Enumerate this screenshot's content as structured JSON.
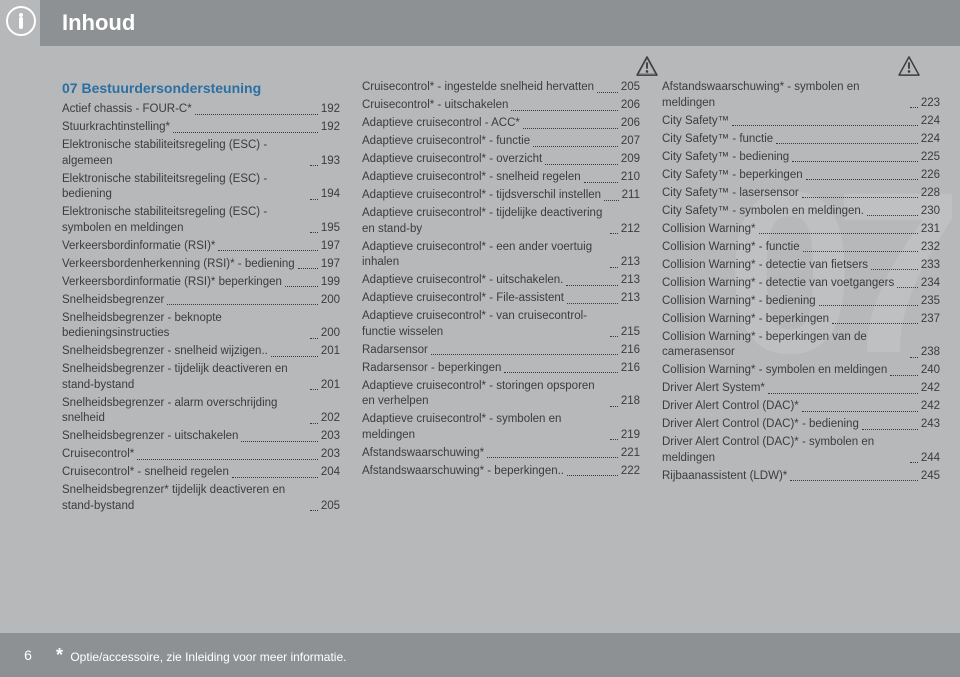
{
  "header": {
    "title": "Inhoud"
  },
  "watermark": "07",
  "section_title": "07 Bestuurdersondersteuning",
  "footer": {
    "page": "6",
    "note_prefix": "*",
    "note": " Optie/accessoire, zie Inleiding voor meer informatie."
  },
  "col1": [
    {
      "label": "Actief chassis - FOUR-C*",
      "page": "192"
    },
    {
      "label": "Stuurkrachtinstelling*",
      "page": "192"
    },
    {
      "label": "Elektronische stabiliteitsregeling (ESC) - algemeen",
      "page": "193"
    },
    {
      "label": "Elektronische stabiliteitsregeling (ESC) - bediening",
      "page": "194"
    },
    {
      "label": "Elektronische stabiliteitsregeling (ESC) - symbolen en meldingen",
      "page": "195"
    },
    {
      "label": "Verkeersbordinformatie (RSI)*",
      "page": "197"
    },
    {
      "label": "Verkeersbordenherkenning (RSI)* - bediening",
      "page": "197"
    },
    {
      "label": "Verkeersbordinformatie (RSI)* beperkingen",
      "page": "199"
    },
    {
      "label": "Snelheidsbegrenzer",
      "page": "200"
    },
    {
      "label": "Snelheidsbegrenzer - beknopte bedieningsinstructies",
      "page": "200"
    },
    {
      "label": "Snelheidsbegrenzer - snelheid wijzigen..",
      "page": "201"
    },
    {
      "label": "Snelheidsbegrenzer - tijdelijk deactiveren en stand-bystand",
      "page": "201"
    },
    {
      "label": "Snelheidsbegrenzer - alarm overschrijding snelheid",
      "page": "202"
    },
    {
      "label": "Snelheidsbegrenzer - uitschakelen",
      "page": "203"
    },
    {
      "label": "Cruisecontrol*",
      "page": "203"
    },
    {
      "label": "Cruisecontrol* - snelheid regelen",
      "page": "204"
    },
    {
      "label": "Snelheidsbegrenzer* tijdelijk deactiveren en stand-bystand",
      "page": "205"
    }
  ],
  "col2": [
    {
      "label": "Cruisecontrol* - ingestelde snelheid hervatten",
      "page": "205"
    },
    {
      "label": "Cruisecontrol* - uitschakelen",
      "page": "206"
    },
    {
      "label": "Adaptieve cruisecontrol - ACC*",
      "page": "206"
    },
    {
      "label": "Adaptieve cruisecontrol* - functie",
      "page": "207"
    },
    {
      "label": "Adaptieve cruisecontrol* - overzicht",
      "page": "209"
    },
    {
      "label": "Adaptieve cruisecontrol* - snelheid regelen",
      "page": "210"
    },
    {
      "label": "Adaptieve cruisecontrol* - tijdsverschil instellen",
      "page": "211"
    },
    {
      "label": "Adaptieve cruisecontrol* - tijdelijke deactivering en stand-by",
      "page": "212"
    },
    {
      "label": "Adaptieve cruisecontrol* - een ander voertuig inhalen",
      "page": "213"
    },
    {
      "label": "Adaptieve cruisecontrol* - uitschakelen.",
      "page": "213"
    },
    {
      "label": "Adaptieve cruisecontrol* - File-assistent",
      "page": "213"
    },
    {
      "label": "Adaptieve cruisecontrol* - van cruisecontrol-functie wisselen",
      "page": "215"
    },
    {
      "label": "Radarsensor",
      "page": "216"
    },
    {
      "label": "Radarsensor - beperkingen",
      "page": "216"
    },
    {
      "label": "Adaptieve cruisecontrol* - storingen opsporen en verhelpen",
      "page": "218"
    },
    {
      "label": "Adaptieve cruisecontrol* - symbolen en meldingen",
      "page": "219"
    },
    {
      "label": "Afstandswaarschuwing*",
      "page": "221"
    },
    {
      "label": "Afstandswaarschuwing* - beperkingen..",
      "page": "222"
    }
  ],
  "col3": [
    {
      "label": "Afstandswaarschuwing* - symbolen en meldingen",
      "page": "223"
    },
    {
      "label": "City Safety™",
      "page": "224"
    },
    {
      "label": "City Safety™ - functie",
      "page": "224"
    },
    {
      "label": "City Safety™ - bediening",
      "page": "225"
    },
    {
      "label": "City Safety™ - beperkingen",
      "page": "226"
    },
    {
      "label": "City Safety™ - lasersensor",
      "page": "228"
    },
    {
      "label": "City Safety™ - symbolen en meldingen.",
      "page": "230"
    },
    {
      "label": "Collision Warning*",
      "page": "231"
    },
    {
      "label": "Collision Warning* - functie",
      "page": "232"
    },
    {
      "label": "Collision Warning* - detectie van fietsers",
      "page": "233"
    },
    {
      "label": "Collision Warning* - detectie van voetgangers",
      "page": "234"
    },
    {
      "label": "Collision Warning* - bediening",
      "page": "235"
    },
    {
      "label": "Collision Warning* - beperkingen",
      "page": "237"
    },
    {
      "label": "Collision Warning* - beperkingen van de camerasensor",
      "page": "238"
    },
    {
      "label": "Collision Warning* - symbolen en meldingen",
      "page": "240"
    },
    {
      "label": "Driver Alert System*",
      "page": "242"
    },
    {
      "label": "Driver Alert Control (DAC)*",
      "page": "242"
    },
    {
      "label": "Driver Alert Control (DAC)* - bediening",
      "page": "243"
    },
    {
      "label": "Driver Alert Control (DAC)* - symbolen en meldingen",
      "page": "244"
    },
    {
      "label": "Rijbaanassistent (LDW)*",
      "page": "245"
    }
  ]
}
